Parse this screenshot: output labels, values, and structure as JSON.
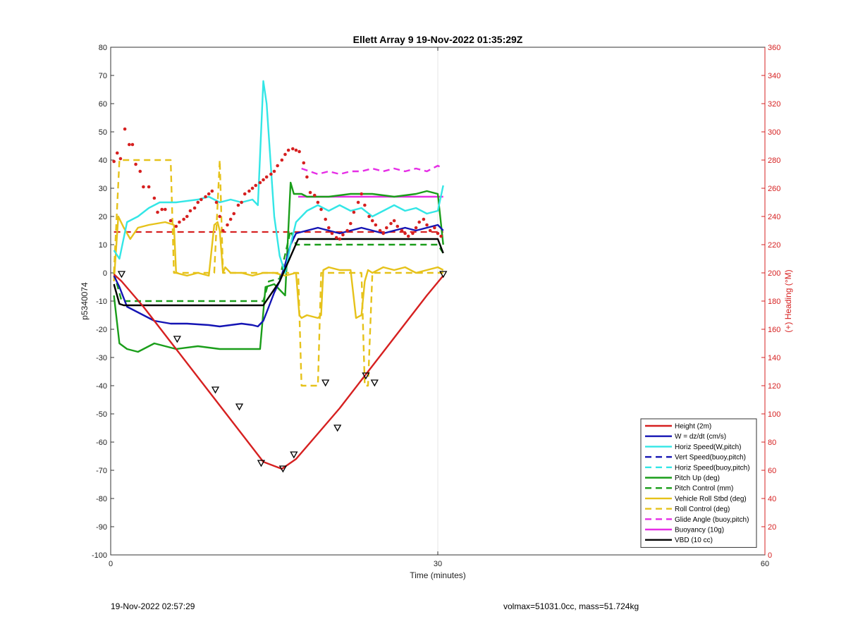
{
  "chart_data": {
    "type": "line",
    "title": "Ellett Array 9 19-Nov-2022 01:35:29Z",
    "xlabel": "Time (minutes)",
    "ylabel": "p5340074",
    "ylabel_right": "(+) Heading (°M)",
    "xlim": [
      0,
      60
    ],
    "ylim": [
      -100,
      80
    ],
    "ylim_right": [
      0,
      360
    ],
    "x_ticks": [
      0,
      30,
      60
    ],
    "y_ticks": [
      -100,
      -90,
      -80,
      -70,
      -60,
      -50,
      -40,
      -30,
      -20,
      -10,
      0,
      10,
      20,
      30,
      40,
      50,
      60,
      70,
      80
    ],
    "y_ticks_right": [
      0,
      20,
      40,
      60,
      80,
      100,
      120,
      140,
      160,
      180,
      200,
      220,
      240,
      260,
      280,
      300,
      320,
      340,
      360
    ],
    "grid_x": [
      30
    ],
    "legend_position": "bottom-right",
    "colors": {
      "red": "#d62020",
      "blue": "#1414b4",
      "cyan": "#33e6e6",
      "green": "#1a9e1a",
      "yellow": "#e6c21a",
      "magenta": "#e62ee6",
      "black": "#000000"
    },
    "series": [
      {
        "name": "Height (2m)",
        "color": "#d62020",
        "style": "solid",
        "x": [
          0.3,
          1,
          3,
          6,
          9,
          12,
          14,
          15.7,
          17,
          19,
          21,
          23,
          25,
          27,
          29,
          30.5
        ],
        "y": [
          -0.5,
          -3,
          -12,
          -27,
          -42,
          -57,
          -67,
          -69.5,
          -66,
          -57,
          -48,
          -38,
          -28,
          -18,
          -8,
          -1
        ]
      },
      {
        "name": "W = dz/dt (cm/s)",
        "color": "#1414b4",
        "style": "solid",
        "x": [
          0.3,
          0.8,
          1.5,
          2.5,
          4,
          5.5,
          7,
          9,
          10,
          11,
          12,
          13,
          13.5,
          14,
          14.5,
          15,
          15.5,
          16,
          16.5,
          17,
          18,
          19,
          20,
          21,
          22,
          23,
          24,
          25,
          26,
          27,
          28,
          29,
          30,
          30.5
        ],
        "y": [
          -1,
          -5,
          -12,
          -14,
          -17,
          -18,
          -18,
          -18.5,
          -19,
          -18.5,
          -18,
          -18.5,
          -19,
          -17,
          -12,
          -7,
          -3,
          3,
          10,
          14,
          15,
          16,
          15,
          14,
          15,
          16,
          15,
          14,
          15,
          16,
          15,
          16,
          17,
          15
        ]
      },
      {
        "name": "Horiz Speed(W,pitch)",
        "color": "#33e6e6",
        "style": "solid",
        "x": [
          0.3,
          0.8,
          1.5,
          2.5,
          3.5,
          4.5,
          6,
          8,
          9,
          10,
          11,
          12,
          13,
          13.5,
          14,
          14.3,
          15,
          15.5,
          16,
          16.5,
          17,
          18,
          19,
          20,
          21,
          22,
          23,
          24,
          25,
          26,
          27,
          28,
          29,
          30,
          30.5
        ],
        "y": [
          8,
          5,
          18,
          20,
          23,
          25,
          25,
          26,
          27,
          25,
          26,
          25,
          26,
          24,
          68,
          60,
          20,
          6,
          0,
          10,
          18,
          22,
          24,
          22,
          24,
          22,
          23,
          20,
          22,
          24,
          22,
          23,
          21,
          22,
          31
        ]
      },
      {
        "name": "Vert Speed(buoy,pitch)",
        "color": "#1414b4",
        "style": "dashed",
        "x": [],
        "y": []
      },
      {
        "name": "Horiz Speed(buoy,pitch)",
        "color": "#33e6e6",
        "style": "dashed",
        "x": [],
        "y": []
      },
      {
        "name": "Pitch Up (deg)",
        "color": "#1a9e1a",
        "style": "solid",
        "x": [
          0.3,
          0.8,
          1.5,
          2.5,
          4,
          6,
          8,
          10,
          12,
          13.7,
          14.2,
          15,
          16,
          16.5,
          16.8,
          17.5,
          18,
          20,
          22,
          24,
          26,
          28,
          29,
          30,
          30.5
        ],
        "y": [
          -8,
          -25,
          -27,
          -28,
          -25,
          -27,
          -26,
          -27,
          -27,
          -27,
          -5,
          -4,
          -8,
          32,
          28,
          28,
          27,
          27,
          28,
          28,
          27,
          28,
          29,
          28,
          10
        ]
      },
      {
        "name": "Pitch Control (mm)",
        "color": "#1a9e1a",
        "style": "dashed",
        "x": [
          0.3,
          1,
          14,
          14.5,
          15.5,
          16.5,
          17,
          30,
          30.5
        ],
        "y": [
          0,
          -10,
          -10,
          -3,
          -2,
          15,
          10,
          10,
          7
        ]
      },
      {
        "name": "Vehicle Roll Stbd (deg)",
        "color": "#e6c21a",
        "style": "solid",
        "x": [
          0.3,
          0.7,
          1.2,
          1.8,
          2.5,
          3.5,
          5,
          5.8,
          6,
          7,
          8,
          9,
          9.5,
          9.8,
          10,
          10.3,
          10.5,
          11,
          12,
          13,
          14,
          15,
          16,
          17,
          17.3,
          17.5,
          18,
          19,
          19.3,
          19.5,
          20,
          21,
          22,
          22.5,
          23,
          23.3,
          23.6,
          24,
          25,
          26,
          27,
          28,
          29,
          30,
          30.5
        ],
        "y": [
          -3,
          20,
          16,
          12,
          16,
          17,
          18,
          17,
          0,
          -1,
          0,
          -1,
          17,
          18,
          15,
          0,
          2,
          0,
          0,
          -1,
          0,
          0,
          -1,
          0,
          -15,
          -16,
          -15,
          -16,
          -15,
          1,
          2,
          1,
          1,
          -16,
          -15,
          -3,
          1,
          0,
          2,
          1,
          2,
          0,
          1,
          2,
          1
        ]
      },
      {
        "name": "Roll Control (deg)",
        "color": "#e6c21a",
        "style": "dashed",
        "x": [
          0.3,
          0.8,
          1.5,
          5.5,
          5.8,
          9.5,
          10,
          10.3,
          16.5,
          17.2,
          17.5,
          19,
          19.3,
          19.6,
          23,
          23.3,
          23.6,
          24,
          29,
          30.5
        ],
        "y": [
          0,
          40,
          40,
          40,
          0,
          0,
          40,
          0,
          0,
          0,
          -40,
          -40,
          0,
          0,
          0,
          -40,
          -40,
          0,
          0,
          0
        ]
      },
      {
        "name": "Glide Angle (buoy,pitch)",
        "color": "#e62ee6",
        "style": "dashed",
        "x": [
          17.5,
          19,
          20,
          21,
          22,
          23,
          24,
          25,
          26,
          27,
          28,
          29,
          30,
          30.5
        ],
        "y": [
          37,
          35,
          36,
          35,
          36,
          36,
          37,
          36,
          37,
          36,
          37,
          36,
          38,
          37
        ]
      },
      {
        "name": "Buoyancy (10g)",
        "color": "#e62ee6",
        "style": "solid",
        "x": [
          17.2,
          30.5
        ],
        "y": [
          27,
          27
        ]
      },
      {
        "name": "VBD (10 cc)",
        "color": "#000000",
        "style": "solid",
        "x": [
          0.3,
          0.8,
          1.2,
          14,
          15.5,
          17.2,
          30,
          30.5
        ],
        "y": [
          -4,
          -11,
          -11.5,
          -11.5,
          -3,
          12,
          12,
          7
        ]
      }
    ],
    "reference_line": {
      "y": 14.5,
      "color": "#d62020",
      "style": "dashed",
      "x": [
        0.3,
        30.5
      ]
    },
    "heading_dots": {
      "color": "#d62020",
      "x": [
        0.3,
        0.6,
        0.9,
        1.3,
        1.7,
        2.0,
        2.3,
        2.7,
        3.0,
        3.5,
        4.0,
        4.3,
        4.7,
        5.0,
        5.5,
        6.0,
        6.3,
        6.7,
        7.0,
        7.3,
        7.7,
        8.0,
        8.3,
        8.7,
        9.0,
        9.3,
        9.7,
        10.0,
        10.3,
        10.7,
        11.0,
        11.3,
        11.7,
        12.0,
        12.3,
        12.7,
        13.0,
        13.3,
        13.7,
        14.0,
        14.3,
        14.7,
        15.0,
        15.3,
        15.7,
        16.0,
        16.3,
        16.7,
        17.0,
        17.3,
        17.7,
        18.0,
        18.3,
        18.7,
        19.0,
        19.3,
        19.7,
        20.0,
        20.3,
        20.7,
        21.0,
        21.3,
        21.7,
        22.0,
        22.3,
        22.7,
        23.0,
        23.3,
        23.7,
        24.0,
        24.3,
        24.7,
        25.0,
        25.3,
        25.7,
        26.0,
        26.3,
        26.7,
        27.0,
        27.3,
        27.7,
        28.0,
        28.3,
        28.7,
        29.0,
        29.3,
        29.7,
        30.0,
        30.3
      ],
      "heading": [
        279,
        285,
        281,
        302,
        291,
        291,
        277,
        272,
        261,
        261,
        253,
        243,
        245,
        245,
        237,
        233,
        236,
        238,
        240,
        244,
        246,
        250,
        252,
        254,
        256,
        258,
        250,
        240,
        230,
        234,
        238,
        242,
        248,
        250,
        256,
        258,
        260,
        262,
        264,
        266,
        268,
        270,
        272,
        276,
        280,
        284,
        287,
        288,
        287,
        286,
        278,
        268,
        257,
        255,
        250,
        245,
        238,
        232,
        228,
        225,
        224,
        227,
        230,
        235,
        243,
        250,
        256,
        248,
        240,
        237,
        234,
        230,
        228,
        232,
        235,
        237,
        233,
        230,
        228,
        226,
        228,
        232,
        236,
        238,
        234,
        230,
        232,
        228,
        226
      ]
    },
    "height_markers": {
      "x": [
        1.0,
        11.8,
        9.6,
        20.8,
        23.4,
        30.5,
        6.1,
        19.7,
        16.8,
        15.8,
        24.2,
        13.8
      ],
      "y": [
        -0.5,
        -47.5,
        -41.5,
        -55,
        -36.5,
        -0.5,
        -23.5,
        -39,
        -64.5,
        -69.5,
        -39,
        -67.5
      ]
    }
  },
  "footer": {
    "left": "19-Nov-2022 02:57:29",
    "right": "volmax=51031.0cc, mass=51.724kg"
  }
}
